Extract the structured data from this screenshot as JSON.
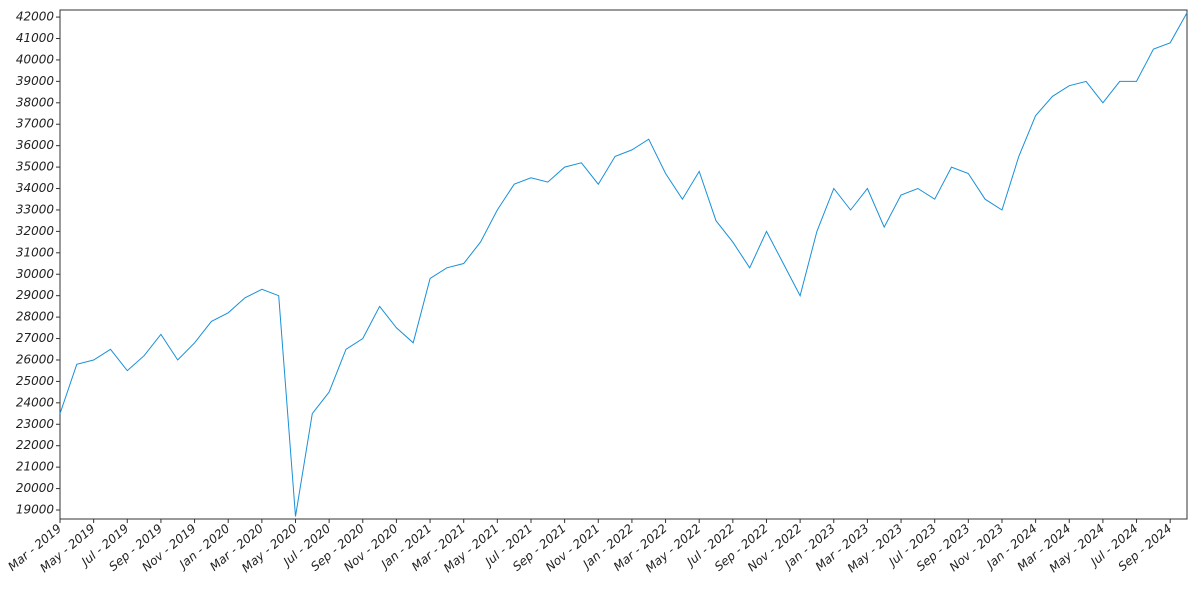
{
  "chart_data": {
    "type": "line",
    "color": "#1a90d8",
    "x": [
      "2019-03",
      "2019-04",
      "2019-05",
      "2019-06",
      "2019-07",
      "2019-08",
      "2019-09",
      "2019-10",
      "2019-11",
      "2019-12",
      "2020-01",
      "2020-02",
      "2020-03",
      "2020-04",
      "2020-05",
      "2020-06",
      "2020-07",
      "2020-08",
      "2020-09",
      "2020-10",
      "2020-11",
      "2020-12",
      "2021-01",
      "2021-02",
      "2021-03",
      "2021-04",
      "2021-05",
      "2021-06",
      "2021-07",
      "2021-08",
      "2021-09",
      "2021-10",
      "2021-11",
      "2021-12",
      "2022-01",
      "2022-02",
      "2022-03",
      "2022-04",
      "2022-05",
      "2022-06",
      "2022-07",
      "2022-08",
      "2022-09",
      "2022-10",
      "2022-11",
      "2022-12",
      "2023-01",
      "2023-02",
      "2023-03",
      "2023-04",
      "2023-05",
      "2023-06",
      "2023-07",
      "2023-08",
      "2023-09",
      "2023-10",
      "2023-11",
      "2023-12",
      "2024-01",
      "2024-02",
      "2024-03",
      "2024-04",
      "2024-05",
      "2024-06",
      "2024-07",
      "2024-08",
      "2024-09",
      "2024-10"
    ],
    "values": [
      23500,
      25800,
      26000,
      26500,
      25500,
      26200,
      27200,
      26000,
      26800,
      27800,
      28200,
      28900,
      29300,
      29000,
      18700,
      23500,
      24500,
      26500,
      27000,
      28500,
      27500,
      26800,
      29800,
      30300,
      30500,
      31500,
      33000,
      34200,
      34500,
      34300,
      35000,
      35200,
      34200,
      35500,
      35800,
      36300,
      34700,
      33500,
      34800,
      32500,
      31500,
      30300,
      32000,
      30500,
      29000,
      32000,
      34000,
      33000,
      34000,
      32200,
      33700,
      34000,
      33500,
      35000,
      34700,
      33500,
      33000,
      35500,
      37400,
      38300,
      38800,
      39000,
      38000,
      39000,
      39000,
      40500,
      40800,
      42200
    ],
    "xlim": [
      "2019-03",
      "2024-10"
    ],
    "xticks": [
      {
        "value": "2019-03",
        "label": "Mar - 2019"
      },
      {
        "value": "2019-05",
        "label": "May - 2019"
      },
      {
        "value": "2019-07",
        "label": "Jul - 2019"
      },
      {
        "value": "2019-09",
        "label": "Sep - 2019"
      },
      {
        "value": "2019-11",
        "label": "Nov - 2019"
      },
      {
        "value": "2020-01",
        "label": "Jan - 2020"
      },
      {
        "value": "2020-03",
        "label": "Mar - 2020"
      },
      {
        "value": "2020-05",
        "label": "May - 2020"
      },
      {
        "value": "2020-07",
        "label": "Jul - 2020"
      },
      {
        "value": "2020-09",
        "label": "Sep - 2020"
      },
      {
        "value": "2020-11",
        "label": "Nov - 2020"
      },
      {
        "value": "2021-01",
        "label": "Jan - 2021"
      },
      {
        "value": "2021-03",
        "label": "Mar - 2021"
      },
      {
        "value": "2021-05",
        "label": "May - 2021"
      },
      {
        "value": "2021-07",
        "label": "Jul - 2021"
      },
      {
        "value": "2021-09",
        "label": "Sep - 2021"
      },
      {
        "value": "2021-11",
        "label": "Nov - 2021"
      },
      {
        "value": "2022-01",
        "label": "Jan - 2022"
      },
      {
        "value": "2022-03",
        "label": "Mar - 2022"
      },
      {
        "value": "2022-05",
        "label": "May - 2022"
      },
      {
        "value": "2022-07",
        "label": "Jul - 2022"
      },
      {
        "value": "2022-09",
        "label": "Sep - 2022"
      },
      {
        "value": "2022-11",
        "label": "Nov - 2022"
      },
      {
        "value": "2023-01",
        "label": "Jan - 2023"
      },
      {
        "value": "2023-03",
        "label": "Mar - 2023"
      },
      {
        "value": "2023-05",
        "label": "May - 2023"
      },
      {
        "value": "2023-07",
        "label": "Jul - 2023"
      },
      {
        "value": "2023-09",
        "label": "Sep - 2023"
      },
      {
        "value": "2023-11",
        "label": "Nov - 2023"
      },
      {
        "value": "2024-01",
        "label": "Jan - 2024"
      },
      {
        "value": "2024-03",
        "label": "Mar - 2024"
      },
      {
        "value": "2024-05",
        "label": "May - 2024"
      },
      {
        "value": "2024-07",
        "label": "Jul - 2024"
      },
      {
        "value": "2024-09",
        "label": "Sep - 2024"
      }
    ],
    "ylim": [
      18580,
      42330
    ],
    "yticks": [
      19000,
      20000,
      21000,
      22000,
      23000,
      24000,
      25000,
      26000,
      27000,
      28000,
      29000,
      30000,
      31000,
      32000,
      33000,
      34000,
      35000,
      36000,
      37000,
      38000,
      39000,
      40000,
      41000,
      42000
    ],
    "grid": false
  }
}
